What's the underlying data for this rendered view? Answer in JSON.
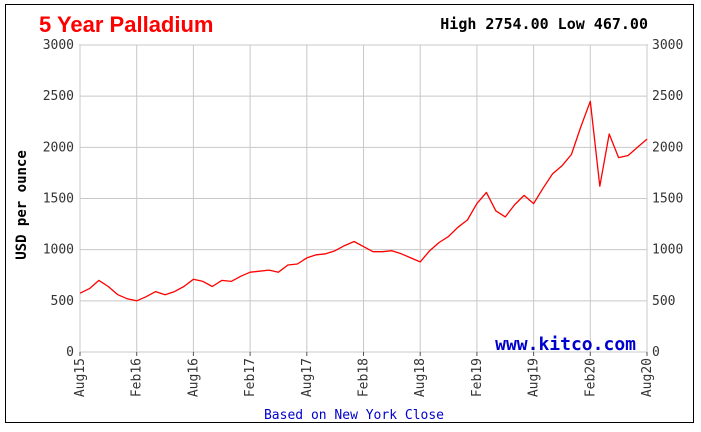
{
  "chart_data": {
    "type": "line",
    "title": "5 Year Palladium",
    "high_low_text": "High 2754.00 Low 467.00",
    "ylabel": "USD per ounce",
    "ylim": [
      0,
      3000
    ],
    "yticks": [
      0,
      500,
      1000,
      1500,
      2000,
      2500,
      3000
    ],
    "xlim": [
      "2015-08",
      "2020-08"
    ],
    "xticks": [
      "Aug15",
      "Feb16",
      "Aug16",
      "Feb17",
      "Aug17",
      "Feb18",
      "Aug18",
      "Feb19",
      "Aug19",
      "Feb20",
      "Aug20"
    ],
    "watermark": "www.kitco.com",
    "footer": "Based on New York Close",
    "grid": true,
    "line_color": "#ff0000",
    "series": [
      {
        "x": [
          "2015-08",
          "2015-09",
          "2015-10",
          "2015-11",
          "2015-12",
          "2016-01",
          "2016-02",
          "2016-03",
          "2016-04",
          "2016-05",
          "2016-06",
          "2016-07",
          "2016-08",
          "2016-09",
          "2016-10",
          "2016-11",
          "2016-12",
          "2017-01",
          "2017-02",
          "2017-03",
          "2017-04",
          "2017-05",
          "2017-06",
          "2017-07",
          "2017-08",
          "2017-09",
          "2017-10",
          "2017-11",
          "2017-12",
          "2018-01",
          "2018-02",
          "2018-03",
          "2018-04",
          "2018-05",
          "2018-06",
          "2018-07",
          "2018-08",
          "2018-09",
          "2018-10",
          "2018-11",
          "2018-12",
          "2019-01",
          "2019-02",
          "2019-03",
          "2019-04",
          "2019-05",
          "2019-06",
          "2019-07",
          "2019-08",
          "2019-09",
          "2019-10",
          "2019-11",
          "2019-12",
          "2020-01",
          "2020-02",
          "2020-03",
          "2020-04",
          "2020-05",
          "2020-06",
          "2020-07",
          "2020-08"
        ],
        "values": [
          575,
          620,
          700,
          640,
          560,
          520,
          500,
          540,
          590,
          560,
          590,
          640,
          710,
          690,
          640,
          700,
          690,
          740,
          780,
          790,
          800,
          780,
          850,
          860,
          920,
          950,
          960,
          990,
          1040,
          1080,
          1030,
          980,
          980,
          990,
          960,
          920,
          880,
          990,
          1070,
          1130,
          1220,
          1290,
          1450,
          1560,
          1380,
          1320,
          1440,
          1530,
          1450,
          1600,
          1740,
          1820,
          1930,
          2200,
          2450,
          1620,
          2130,
          1900,
          1920,
          2000,
          2080
        ]
      }
    ]
  }
}
